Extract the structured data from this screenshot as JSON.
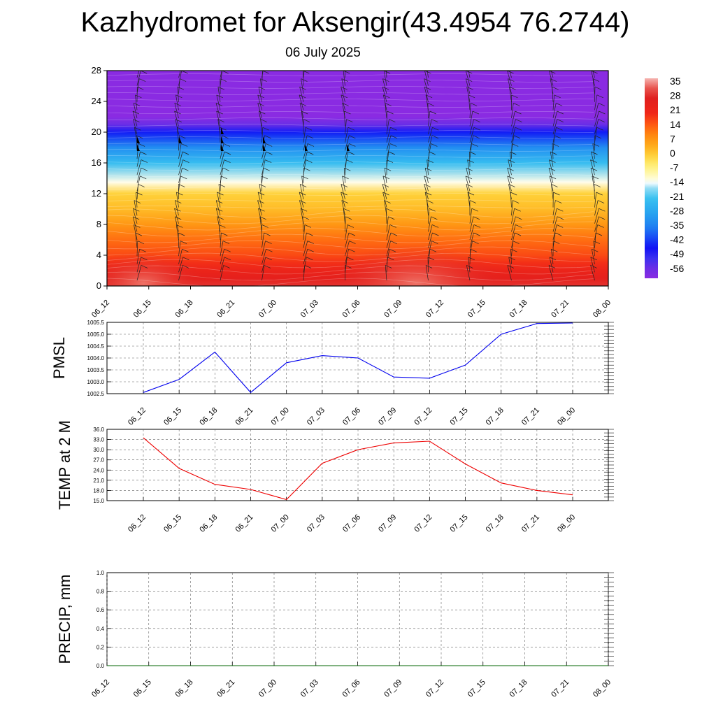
{
  "page": {
    "title": "Kazhydromet for Aksengir(43.4954 76.2744)",
    "subtitle": "06 July 2025"
  },
  "chart_data": [
    {
      "type": "heatmap",
      "description_of_fill": "temperature vs height with wind barbs",
      "x_ticks": [
        "06_12",
        "06_15",
        "06_18",
        "06_21",
        "07_00",
        "07_03",
        "07_06",
        "07_09",
        "07_12",
        "07_15",
        "07_18",
        "07_21",
        "08_00"
      ],
      "y_ticks": [
        0,
        4,
        8,
        12,
        16,
        20,
        24,
        28
      ],
      "ylim": [
        0,
        28
      ],
      "colorbar_labels": [
        "35",
        "28",
        "21",
        "14",
        "7",
        "0",
        "-7",
        "-14",
        "-21",
        "-28",
        "-35",
        "-42",
        "-49",
        "-56"
      ],
      "colorbar_range": [
        -60,
        38
      ],
      "profile_levels": [
        0,
        1,
        2,
        3,
        4,
        6,
        8,
        10,
        12,
        13.5,
        16,
        18,
        20,
        21,
        22,
        24,
        28
      ],
      "profile_temps": [
        30,
        26,
        23,
        20,
        17,
        13,
        8,
        3,
        0,
        -12,
        -22,
        -32,
        -44,
        -55,
        -62,
        -62,
        -64
      ],
      "colors": {
        "warm": "#e01e1e",
        "cold": "#8a2be2"
      }
    },
    {
      "type": "line",
      "ylabel": "PMSL",
      "x": [
        "06_12",
        "06_15",
        "06_18",
        "06_21",
        "07_00",
        "07_03",
        "07_06",
        "07_09",
        "07_12",
        "07_15",
        "07_18",
        "07_21",
        "08_00"
      ],
      "values": [
        1002.55,
        1003.1,
        1004.25,
        1002.55,
        1003.8,
        1004.1,
        1004.0,
        1003.2,
        1003.15,
        1003.7,
        1005.0,
        1005.45,
        1005.47
      ],
      "ylim": [
        1002.5,
        1005.5
      ],
      "y_ticks": [
        "1002.5",
        "1003.0",
        "1003.5",
        "1004.0",
        "1004.5",
        "1005.0",
        "1005.5"
      ],
      "grid": true,
      "color": "#0000ee"
    },
    {
      "type": "line",
      "ylabel": "TEMP at 2 M",
      "x": [
        "06_12",
        "06_15",
        "06_18",
        "06_21",
        "07_00",
        "07_03",
        "07_06",
        "07_09",
        "07_12",
        "07_15",
        "07_18",
        "07_21",
        "08_00"
      ],
      "values": [
        33.5,
        24.5,
        19.8,
        18.3,
        15.3,
        26.0,
        30.0,
        32.0,
        32.5,
        25.8,
        20.2,
        18.0,
        16.7
      ],
      "ylim": [
        15.0,
        36.0
      ],
      "y_ticks": [
        "15.0",
        "18.0",
        "21.0",
        "24.0",
        "27.0",
        "30.0",
        "33.0",
        "36.0"
      ],
      "grid": true,
      "color": "#ee0000"
    },
    {
      "type": "line",
      "ylabel": "PRECIP, mm",
      "x": [
        "06_12",
        "06_15",
        "06_18",
        "06_21",
        "07_00",
        "07_03",
        "07_06",
        "07_09",
        "07_12",
        "07_15",
        "07_18",
        "07_21",
        "08_00"
      ],
      "values": [
        0,
        0,
        0,
        0,
        0,
        0,
        0,
        0,
        0,
        0,
        0,
        0,
        0
      ],
      "ylim": [
        0.0,
        1.0
      ],
      "y_ticks": [
        "0.0",
        "0.2",
        "0.4",
        "0.6",
        "0.8",
        "1.0"
      ],
      "grid": true,
      "color": "#006400"
    }
  ]
}
